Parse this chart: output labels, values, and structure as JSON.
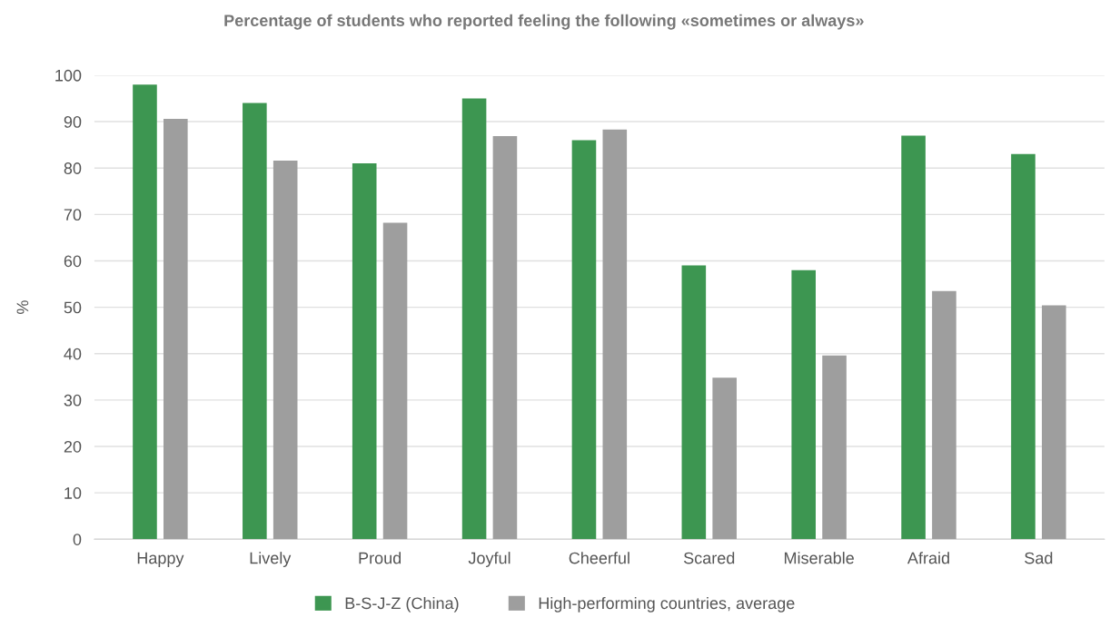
{
  "chart_data": {
    "type": "bar",
    "title": "Percentage of students who reported feeling the following «sometimes or always»",
    "ylabel": "%",
    "categories": [
      "Happy",
      "Lively",
      "Proud",
      "Joyful",
      "Cheerful",
      "Scared",
      "Miserable",
      "Afraid",
      "Sad"
    ],
    "series": [
      {
        "name": "B-S-J-Z (China)",
        "color": "#3d9651",
        "values": [
          98,
          94,
          81,
          95,
          86,
          59,
          58,
          87,
          83
        ]
      },
      {
        "name": "High-performing countries, average",
        "color": "#9e9e9e",
        "values": [
          90.6,
          81.6,
          68.2,
          86.9,
          88.3,
          34.8,
          39.6,
          53.5,
          50.4
        ]
      }
    ],
    "ylim": [
      0,
      100
    ],
    "yticks": [
      0,
      10,
      20,
      30,
      40,
      50,
      60,
      70,
      80,
      90,
      100
    ],
    "grid": "y",
    "legend": "bottom"
  }
}
